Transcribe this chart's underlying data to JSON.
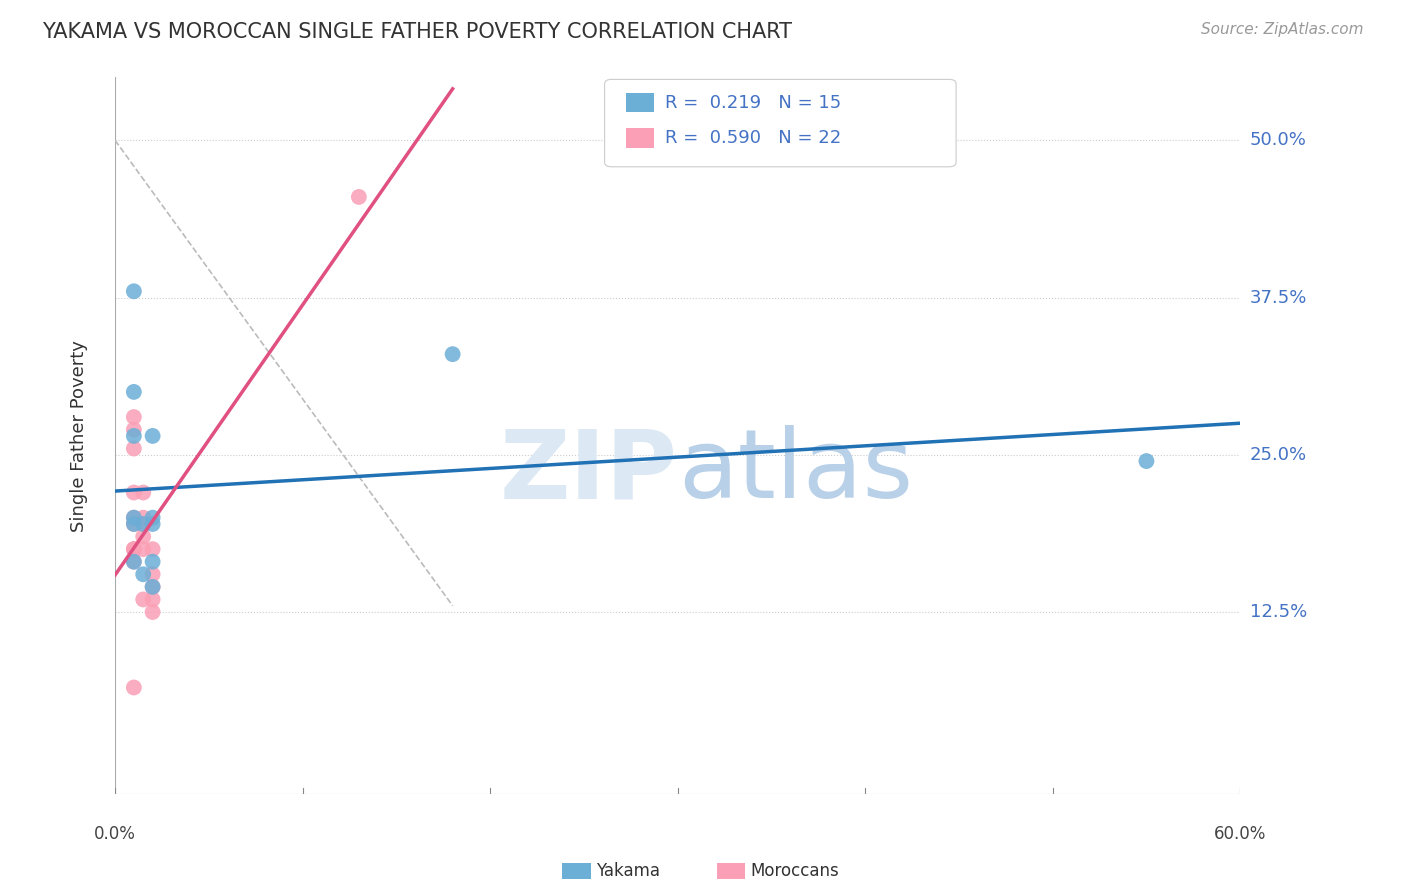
{
  "title": "YAKAMA VS MOROCCAN SINGLE FATHER POVERTY CORRELATION CHART",
  "source": "Source: ZipAtlas.com",
  "ylabel": "Single Father Poverty",
  "ytick_values": [
    0.125,
    0.25,
    0.375,
    0.5
  ],
  "ytick_labels": [
    "12.5%",
    "25.0%",
    "37.5%",
    "50.0%"
  ],
  "xlim": [
    0.0,
    0.6
  ],
  "ylim": [
    -0.02,
    0.55
  ],
  "legend_entries": [
    {
      "r_val": "0.219",
      "n_val": "15",
      "color": "#a8c4e0"
    },
    {
      "r_val": "0.590",
      "n_val": "22",
      "color": "#f4a8b8"
    }
  ],
  "bottom_legend": [
    {
      "label": "Yakama",
      "color": "#6baed6"
    },
    {
      "label": "Moroccans",
      "color": "#fa9fb5"
    }
  ],
  "yakama_points": [
    [
      0.01,
      0.38
    ],
    [
      0.01,
      0.3
    ],
    [
      0.01,
      0.265
    ],
    [
      0.01,
      0.2
    ],
    [
      0.02,
      0.265
    ],
    [
      0.02,
      0.2
    ],
    [
      0.01,
      0.195
    ],
    [
      0.015,
      0.195
    ],
    [
      0.02,
      0.195
    ],
    [
      0.01,
      0.165
    ],
    [
      0.02,
      0.165
    ],
    [
      0.015,
      0.155
    ],
    [
      0.02,
      0.145
    ],
    [
      0.18,
      0.33
    ],
    [
      0.55,
      0.245
    ]
  ],
  "moroccan_points": [
    [
      0.01,
      0.28
    ],
    [
      0.01,
      0.27
    ],
    [
      0.01,
      0.255
    ],
    [
      0.01,
      0.22
    ],
    [
      0.015,
      0.22
    ],
    [
      0.01,
      0.2
    ],
    [
      0.015,
      0.2
    ],
    [
      0.01,
      0.195
    ],
    [
      0.015,
      0.195
    ],
    [
      0.015,
      0.185
    ],
    [
      0.01,
      0.175
    ],
    [
      0.015,
      0.175
    ],
    [
      0.02,
      0.175
    ],
    [
      0.01,
      0.165
    ],
    [
      0.02,
      0.155
    ],
    [
      0.02,
      0.145
    ],
    [
      0.015,
      0.135
    ],
    [
      0.02,
      0.135
    ],
    [
      0.02,
      0.125
    ],
    [
      0.13,
      0.455
    ],
    [
      0.01,
      0.065
    ],
    [
      0.01,
      0.175
    ]
  ],
  "yakama_color": "#6baed6",
  "moroccan_color": "#fa9fb5",
  "yakama_line_color": "#2171b5",
  "moroccan_line_color": "#e05080",
  "trend_dashed_color": "#bbbbbb",
  "background_color": "#ffffff",
  "grid_color": "#cccccc"
}
